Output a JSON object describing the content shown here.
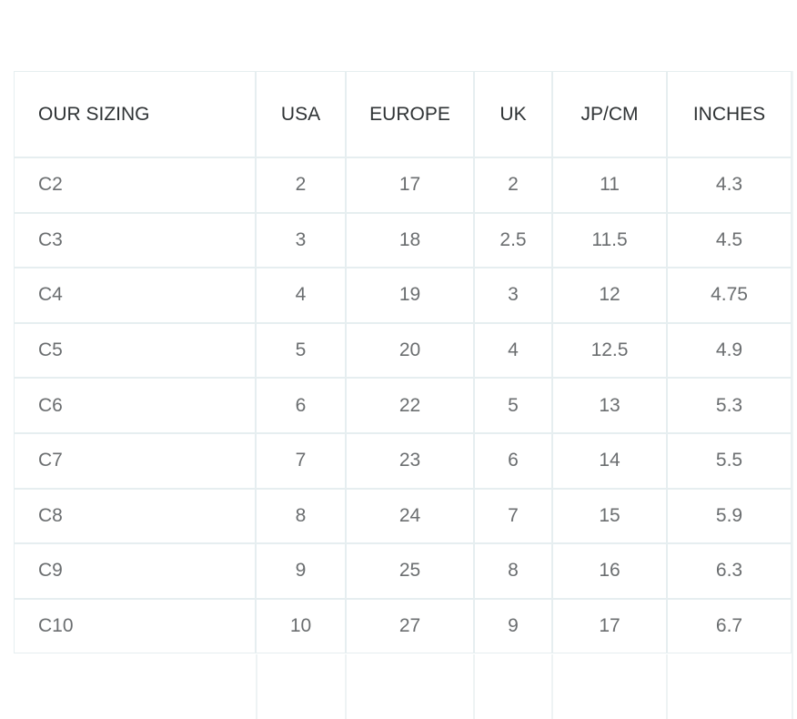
{
  "table": {
    "header": [
      "OUR SIZING",
      "USA",
      "EUROPE",
      "UK",
      "JP/CM",
      "INCHES"
    ],
    "rows": [
      [
        "C2",
        "2",
        "17",
        "2",
        "11",
        "4.3"
      ],
      [
        "C3",
        "3",
        "18",
        "2.5",
        "11.5",
        "4.5"
      ],
      [
        "C4",
        "4",
        "19",
        "3",
        "12",
        "4.75"
      ],
      [
        "C5",
        "5",
        "20",
        "4",
        "12.5",
        "4.9"
      ],
      [
        "C6",
        "6",
        "22",
        "5",
        "13",
        "5.3"
      ],
      [
        "C7",
        "7",
        "23",
        "6",
        "14",
        "5.5"
      ],
      [
        "C8",
        "8",
        "24",
        "7",
        "15",
        "5.9"
      ],
      [
        "C9",
        "9",
        "25",
        "8",
        "16",
        "6.3"
      ],
      [
        "C10",
        "10",
        "27",
        "9",
        "17",
        "6.7"
      ]
    ]
  }
}
